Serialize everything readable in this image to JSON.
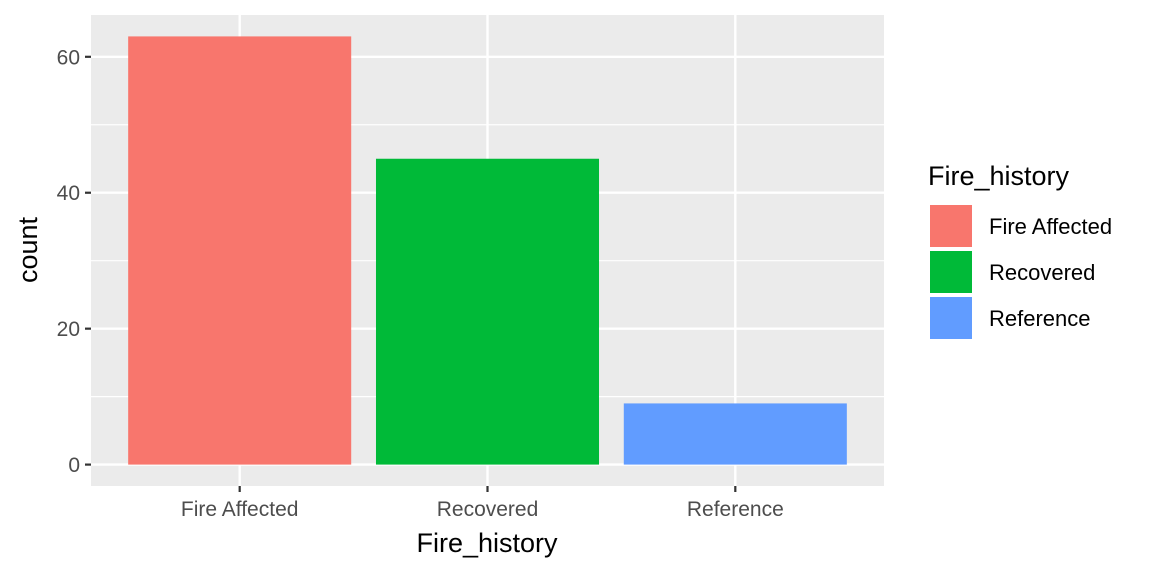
{
  "chart_data": {
    "type": "bar",
    "categories": [
      "Fire Affected",
      "Recovered",
      "Reference"
    ],
    "values": [
      63,
      45,
      9
    ],
    "colors": [
      "#F8766D",
      "#00BA38",
      "#619CFF"
    ],
    "xlabel": "Fire_history",
    "ylabel": "count",
    "ylim": [
      -3.15,
      66.15
    ],
    "yticks": [
      0,
      20,
      40,
      60
    ],
    "ytick_labels": [
      "0",
      "20",
      "40",
      "60"
    ],
    "grid": true,
    "panel_background": "#EBEBEB",
    "legend": {
      "title": "Fire_history",
      "position": "right",
      "entries": [
        "Fire Affected",
        "Recovered",
        "Reference"
      ]
    }
  }
}
